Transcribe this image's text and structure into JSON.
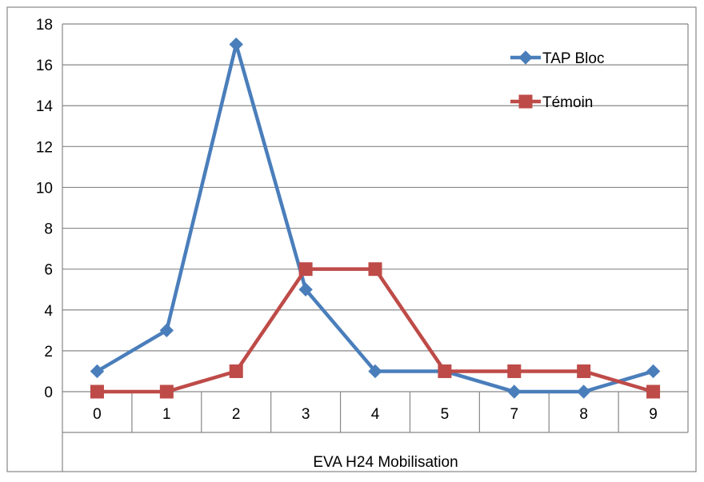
{
  "chart_data": {
    "type": "line",
    "title": "",
    "xlabel": "EVA H24 Mobilisation",
    "ylabel": "",
    "categories": [
      "0",
      "1",
      "2",
      "3",
      "4",
      "5",
      "7",
      "8",
      "9"
    ],
    "y_ticks": [
      "0",
      "2",
      "4",
      "6",
      "8",
      "10",
      "12",
      "14",
      "16",
      "18"
    ],
    "ylim": [
      0,
      18
    ],
    "grid": true,
    "legend_position": "top-right",
    "series": [
      {
        "name": "TAP Bloc",
        "values": [
          1,
          3,
          17,
          5,
          1,
          1,
          0,
          0,
          1
        ],
        "color": "#4a7ebb",
        "marker": "diamond"
      },
      {
        "name": "Témoin",
        "values": [
          0,
          0,
          1,
          6,
          6,
          1,
          1,
          1,
          0
        ],
        "color": "#be4b48",
        "marker": "square"
      }
    ]
  }
}
